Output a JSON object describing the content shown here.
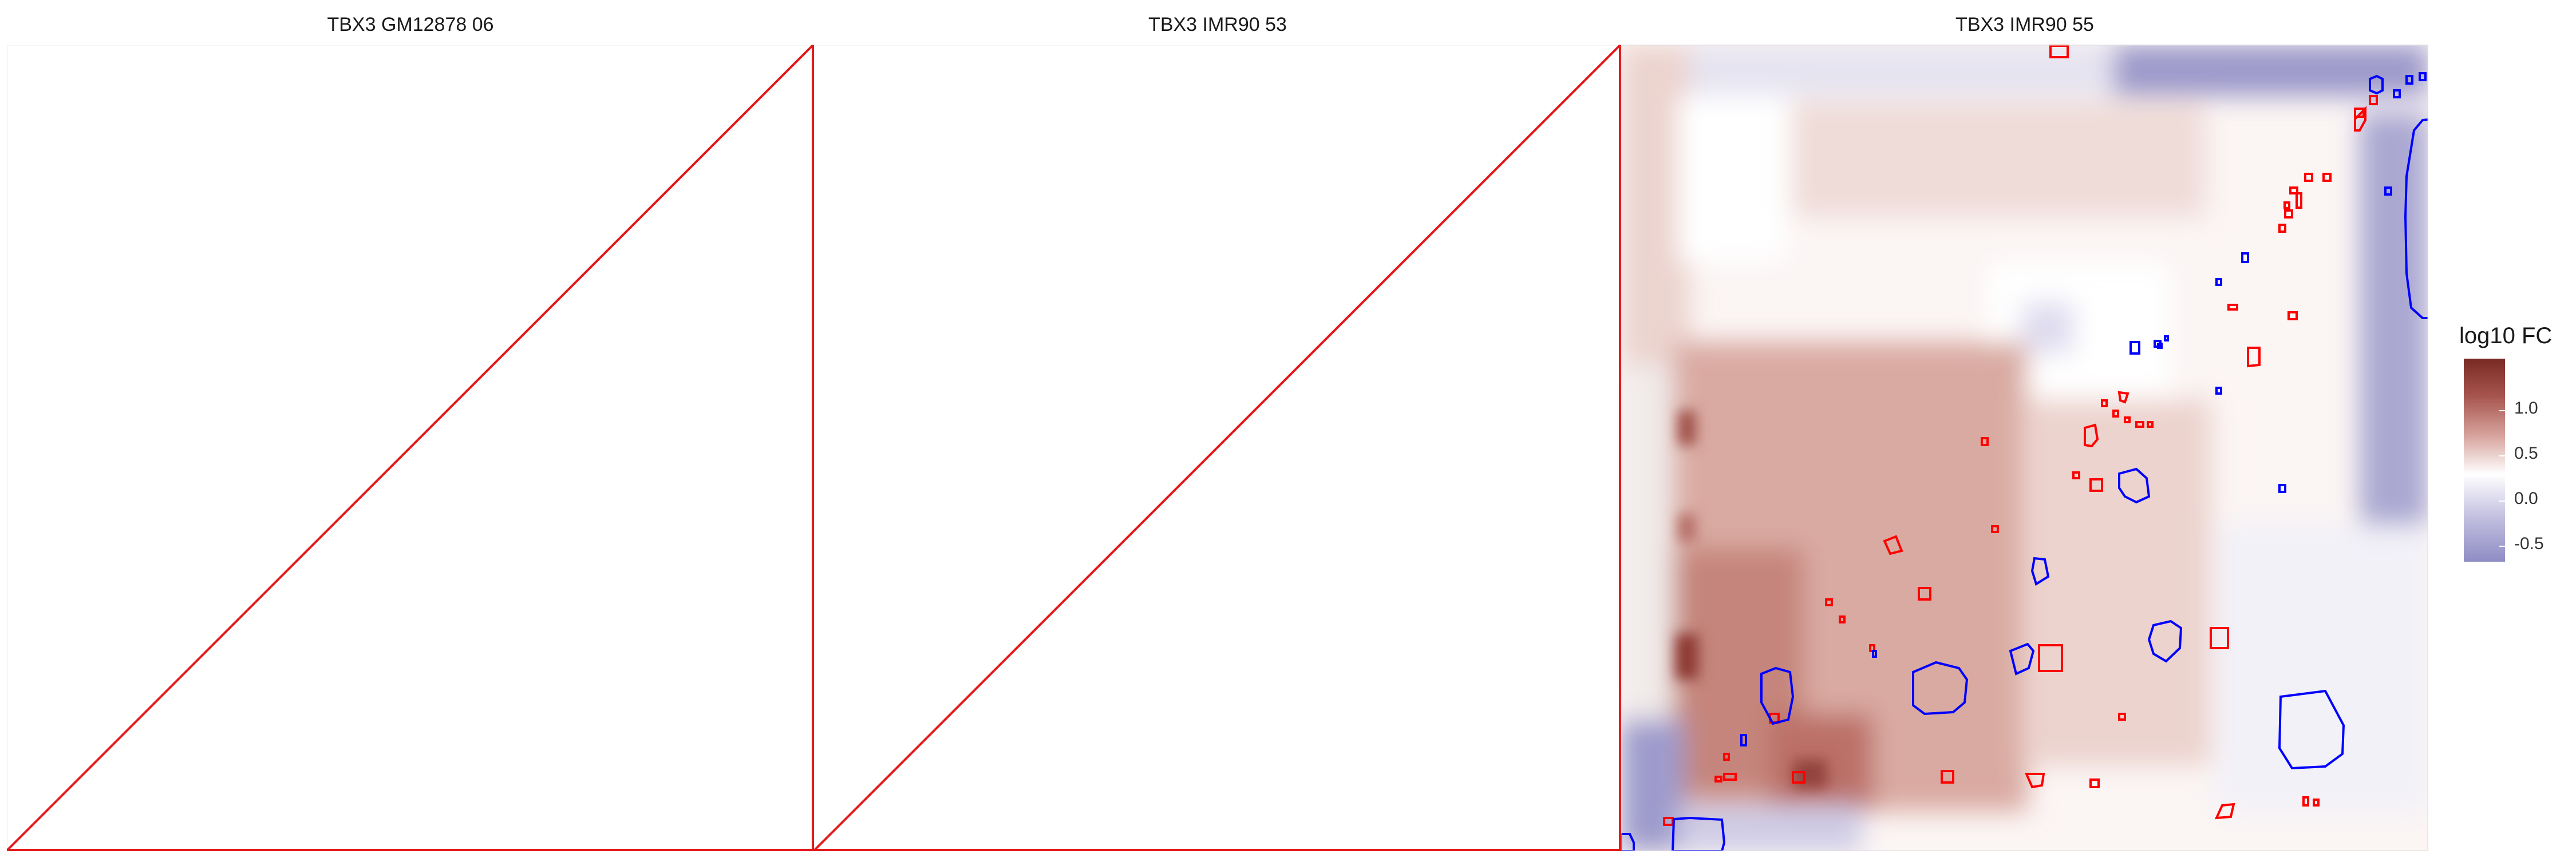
{
  "chart_data": [
    {
      "type": "heatmap",
      "title": "TBX3 GM12878 06",
      "status": "empty",
      "border_color": "#e31a1c"
    },
    {
      "type": "heatmap",
      "title": "TBX3 IMR90 53",
      "status": "empty",
      "border_color": "#e31a1c"
    },
    {
      "type": "heatmap",
      "title": "TBX3 IMR90 55",
      "status": "data",
      "colorbar": {
        "title": "log10 FC",
        "ticks": [
          "1.0",
          "0.5",
          "0.0",
          "-0.5"
        ],
        "range": [
          -0.8,
          1.4
        ],
        "high_color": "#7a2a24",
        "mid_color": "#ffffff",
        "low_color": "#8f8cc4"
      },
      "outline_colors": {
        "enriched": "#ff0000",
        "depleted": "#0000ff"
      }
    }
  ]
}
